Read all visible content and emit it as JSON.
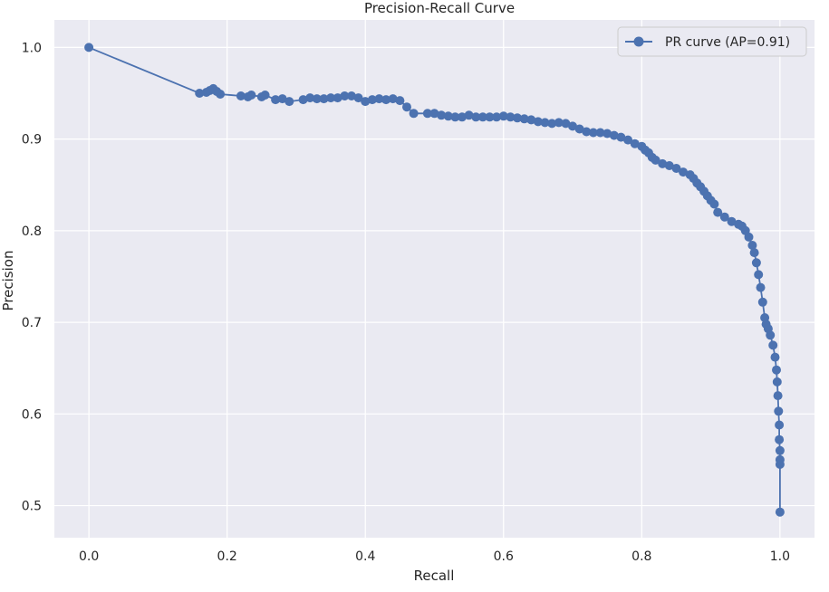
{
  "chart_data": {
    "type": "line",
    "title": "Precision-Recall Curve",
    "xlabel": "Recall",
    "ylabel": "Precision",
    "xlim": [
      -0.05,
      1.05
    ],
    "ylim": [
      0.465,
      1.03
    ],
    "xticks": [
      0.0,
      0.2,
      0.4,
      0.6,
      0.8,
      1.0
    ],
    "xtick_labels": [
      "0.0",
      "0.2",
      "0.4",
      "0.6",
      "0.8",
      "1.0"
    ],
    "yticks": [
      0.5,
      0.6,
      0.7,
      0.8,
      0.9,
      1.0
    ],
    "ytick_labels": [
      "0.5",
      "0.6",
      "0.7",
      "0.8",
      "0.9",
      "1.0"
    ],
    "grid": true,
    "legend_position": "top-right",
    "style": {
      "background": "#eaeaf2",
      "grid_color": "#ffffff",
      "series_color": "#4c72b0",
      "marker": "circle"
    },
    "series": [
      {
        "name": "PR curve (AP=0.91)",
        "x": [
          0.0,
          0.16,
          0.17,
          0.175,
          0.18,
          0.185,
          0.19,
          0.22,
          0.23,
          0.235,
          0.25,
          0.255,
          0.27,
          0.28,
          0.29,
          0.31,
          0.32,
          0.33,
          0.34,
          0.35,
          0.36,
          0.37,
          0.38,
          0.39,
          0.4,
          0.41,
          0.42,
          0.43,
          0.44,
          0.45,
          0.46,
          0.47,
          0.49,
          0.5,
          0.51,
          0.52,
          0.53,
          0.54,
          0.55,
          0.56,
          0.57,
          0.58,
          0.59,
          0.6,
          0.61,
          0.62,
          0.63,
          0.64,
          0.65,
          0.66,
          0.67,
          0.68,
          0.69,
          0.7,
          0.71,
          0.72,
          0.73,
          0.74,
          0.75,
          0.76,
          0.77,
          0.78,
          0.79,
          0.8,
          0.805,
          0.81,
          0.815,
          0.82,
          0.83,
          0.84,
          0.85,
          0.86,
          0.87,
          0.875,
          0.88,
          0.885,
          0.89,
          0.895,
          0.9,
          0.905,
          0.91,
          0.92,
          0.93,
          0.94,
          0.945,
          0.95,
          0.955,
          0.96,
          0.963,
          0.966,
          0.969,
          0.972,
          0.975,
          0.978,
          0.98,
          0.983,
          0.986,
          0.99,
          0.993,
          0.995,
          0.996,
          0.997,
          0.998,
          0.999,
          0.999,
          1.0,
          1.0,
          1.0,
          1.0
        ],
        "y": [
          1.0,
          0.95,
          0.951,
          0.953,
          0.955,
          0.952,
          0.949,
          0.947,
          0.946,
          0.948,
          0.946,
          0.948,
          0.943,
          0.944,
          0.941,
          0.943,
          0.945,
          0.944,
          0.944,
          0.945,
          0.945,
          0.947,
          0.947,
          0.945,
          0.941,
          0.943,
          0.944,
          0.943,
          0.944,
          0.942,
          0.935,
          0.928,
          0.928,
          0.928,
          0.926,
          0.925,
          0.924,
          0.924,
          0.926,
          0.924,
          0.924,
          0.924,
          0.924,
          0.925,
          0.924,
          0.923,
          0.922,
          0.921,
          0.919,
          0.918,
          0.917,
          0.918,
          0.917,
          0.914,
          0.911,
          0.908,
          0.907,
          0.907,
          0.906,
          0.904,
          0.902,
          0.899,
          0.895,
          0.892,
          0.888,
          0.885,
          0.88,
          0.877,
          0.873,
          0.871,
          0.868,
          0.864,
          0.861,
          0.857,
          0.852,
          0.848,
          0.843,
          0.838,
          0.833,
          0.829,
          0.82,
          0.815,
          0.81,
          0.807,
          0.805,
          0.8,
          0.793,
          0.784,
          0.776,
          0.765,
          0.752,
          0.738,
          0.722,
          0.705,
          0.698,
          0.693,
          0.686,
          0.675,
          0.662,
          0.648,
          0.635,
          0.62,
          0.603,
          0.588,
          0.572,
          0.56,
          0.55,
          0.545,
          0.493
        ]
      }
    ]
  }
}
